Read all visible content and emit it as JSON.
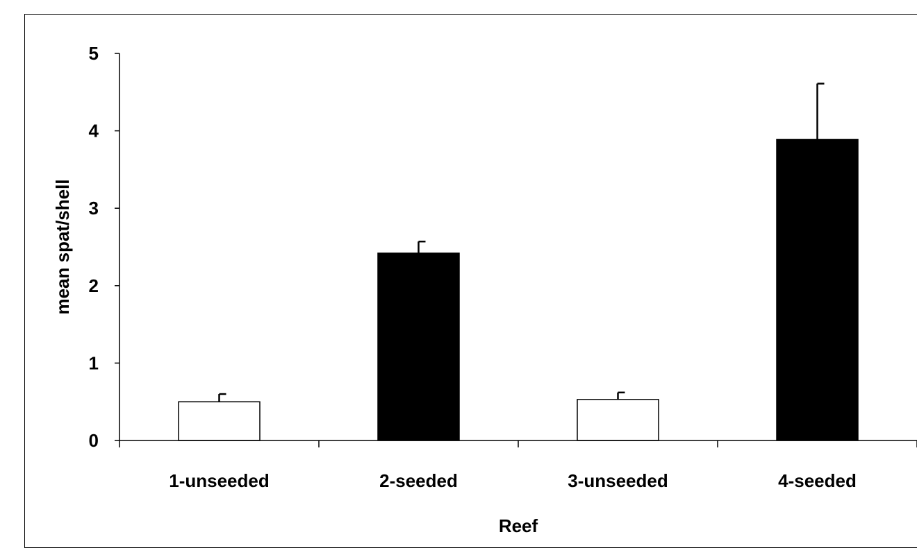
{
  "chart_data": {
    "type": "bar",
    "title": "",
    "xlabel": "Reef",
    "ylabel": "mean spat/shell",
    "ylim": [
      0,
      5
    ],
    "yticks": [
      0,
      1,
      2,
      3,
      4,
      5
    ],
    "categories": [
      "1-unseeded",
      "2-seeded",
      "3-unseeded",
      "4-seeded"
    ],
    "values": [
      0.5,
      2.42,
      0.53,
      3.89
    ],
    "errors": [
      0.1,
      0.15,
      0.09,
      0.72
    ],
    "bar_colors": [
      "#ffffff",
      "#000000",
      "#ffffff",
      "#000000"
    ],
    "legend": "none",
    "grid": false
  }
}
